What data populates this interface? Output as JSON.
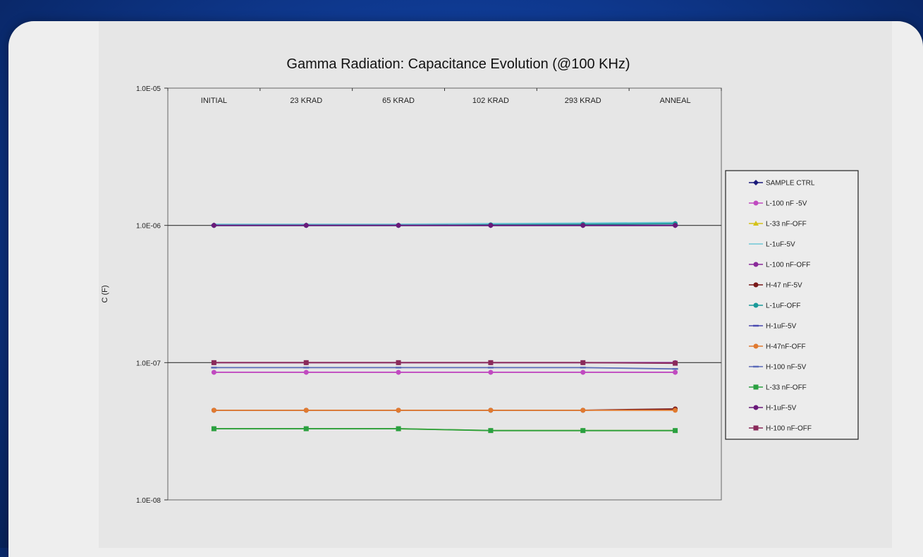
{
  "chart_data": {
    "type": "line",
    "title": "Gamma Radiation: Capacitance Evolution (@100 KHz)",
    "xlabel": "",
    "ylabel": "C (F)",
    "y_scale": "log",
    "ylim": [
      1e-08,
      1e-05
    ],
    "y_tick_labels": [
      "1.0E-05",
      "1.0E-06",
      "1.0E-07",
      "1.0E-08"
    ],
    "y_tick_values": [
      1e-05,
      1e-06,
      1e-07,
      1e-08
    ],
    "x_axis_position": "top",
    "categories": [
      "INITIAL",
      "23 KRAD",
      "65 KRAD",
      "102 KRAD",
      "293 KRAD",
      "ANNEAL"
    ],
    "legend_position": "right",
    "grid": "major y only",
    "series": [
      {
        "name": "SAMPLE CTRL",
        "color": "#1a1a7a",
        "marker": "diamond",
        "values": [
          1e-06,
          1e-06,
          1e-06,
          1e-06,
          1e-06,
          1e-06
        ]
      },
      {
        "name": "L-100 nF -5V",
        "color": "#c04ac0",
        "marker": "circle",
        "values": [
          8.5e-08,
          8.5e-08,
          8.5e-08,
          8.5e-08,
          8.5e-08,
          8.5e-08
        ]
      },
      {
        "name": "L-33 nF-OFF",
        "color": "#d4c21a",
        "marker": "triangle",
        "values": [
          3.3e-08,
          3.3e-08,
          3.3e-08,
          3.2e-08,
          3.2e-08,
          3.2e-08
        ]
      },
      {
        "name": "L-1uF-5V",
        "color": "#6fc6d6",
        "marker": "none",
        "values": [
          1.02e-06,
          1.02e-06,
          1.02e-06,
          1.03e-06,
          1.04e-06,
          1.05e-06
        ]
      },
      {
        "name": "L-100 nF-OFF",
        "color": "#8a2a9a",
        "marker": "star",
        "values": [
          1e-07,
          1e-07,
          1e-07,
          1e-07,
          1e-07,
          1e-07
        ]
      },
      {
        "name": "H-47 nF-5V",
        "color": "#7a1a1a",
        "marker": "circle",
        "values": [
          4.5e-08,
          4.5e-08,
          4.5e-08,
          4.5e-08,
          4.5e-08,
          4.6e-08
        ]
      },
      {
        "name": "L-1uF-OFF",
        "color": "#1a9a9a",
        "marker": "circle",
        "values": [
          1e-06,
          1e-06,
          1e-06,
          1.01e-06,
          1.02e-06,
          1.03e-06
        ]
      },
      {
        "name": "H-1uF-5V",
        "color": "#4a4ab0",
        "marker": "dash",
        "values": [
          1e-06,
          1e-06,
          1e-06,
          1e-06,
          1e-06,
          1e-06
        ]
      },
      {
        "name": "H-47nF-OFF",
        "color": "#e07a30",
        "marker": "circle",
        "values": [
          4.5e-08,
          4.5e-08,
          4.5e-08,
          4.5e-08,
          4.5e-08,
          4.5e-08
        ]
      },
      {
        "name": "H-100 nF-5V",
        "color": "#5a6ab8",
        "marker": "dash",
        "values": [
          9.2e-08,
          9.2e-08,
          9.2e-08,
          9.2e-08,
          9.2e-08,
          9e-08
        ]
      },
      {
        "name": "L-33 nF-OFF",
        "color": "#2aa040",
        "marker": "square",
        "values": [
          3.3e-08,
          3.3e-08,
          3.3e-08,
          3.2e-08,
          3.2e-08,
          3.2e-08
        ]
      },
      {
        "name": "H-1uF-5V",
        "color": "#6a1a7a",
        "marker": "circle",
        "values": [
          1e-06,
          1e-06,
          1e-06,
          1e-06,
          1e-06,
          1e-06
        ]
      },
      {
        "name": "H-100 nF-OFF",
        "color": "#8a2a5a",
        "marker": "square",
        "values": [
          1e-07,
          1e-07,
          1e-07,
          1e-07,
          1e-07,
          9.9e-08
        ]
      }
    ]
  }
}
